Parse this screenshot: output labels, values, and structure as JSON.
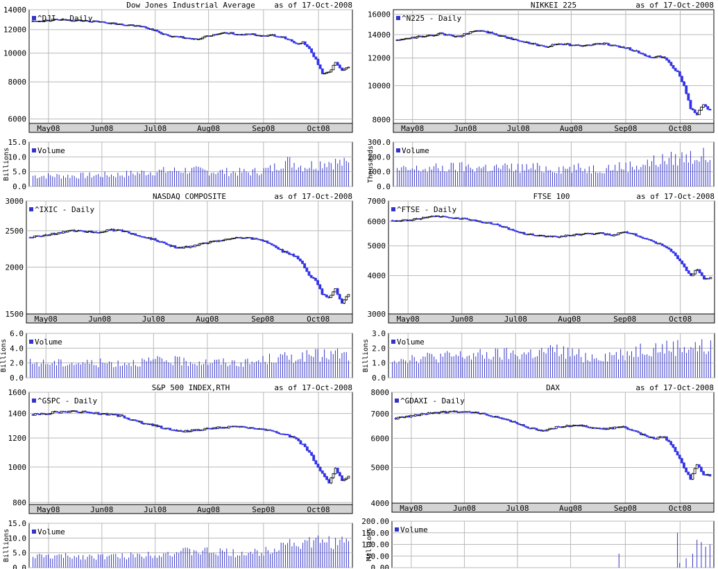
{
  "colors": {
    "down_candle": "#3333ee",
    "up_candle": "#ffffff",
    "candle_outline": "#000000",
    "volume_bar": "#3333cc",
    "grid": "#b8b8b8",
    "date_band": "#d4d4d4",
    "legend_box": "#3333cc"
  },
  "months": [
    "May08",
    "Jun08",
    "Jul08",
    "Aug08",
    "Sep08",
    "Oct08"
  ],
  "chart_data": [
    {
      "type": "candlestick",
      "title": "Dow Jones Industrial Average",
      "asof": "as of 17-Oct-2008",
      "legend": "^DJI - Daily",
      "vol_legend": "Volume",
      "vol_unit": "Billions",
      "y_scale": "log",
      "ylim": [
        5800,
        14000
      ],
      "yticks": [
        6000,
        8000,
        10000,
        12000,
        14000
      ],
      "ytick_labels": [
        "6000",
        "8000",
        "10000",
        "12000",
        "14000"
      ],
      "vol_ylim": [
        0,
        15
      ],
      "vol_ticks": [
        0,
        5,
        10,
        15
      ],
      "vol_tick_labels": [
        "0.0",
        "5.0",
        "10.0",
        "15.0"
      ],
      "close_path": [
        [
          0,
          12800
        ],
        [
          10,
          12950
        ],
        [
          20,
          12900
        ],
        [
          30,
          12750
        ],
        [
          40,
          12500
        ],
        [
          48,
          12400
        ],
        [
          55,
          12000
        ],
        [
          62,
          11400
        ],
        [
          68,
          11300
        ],
        [
          75,
          11100
        ],
        [
          80,
          11400
        ],
        [
          85,
          11600
        ],
        [
          90,
          11700
        ],
        [
          95,
          11500
        ],
        [
          100,
          11600
        ],
        [
          105,
          11400
        ],
        [
          110,
          11500
        ],
        [
          115,
          11300
        ],
        [
          118,
          11100
        ],
        [
          121,
          10700
        ],
        [
          124,
          10900
        ],
        [
          127,
          10300
        ],
        [
          130,
          9500
        ],
        [
          133,
          8500
        ],
        [
          136,
          8600
        ],
        [
          139,
          9300
        ],
        [
          142,
          8700
        ],
        [
          145,
          9000
        ]
      ],
      "volume_path": [
        [
          0,
          3.6
        ],
        [
          20,
          3.6
        ],
        [
          40,
          4.0
        ],
        [
          55,
          5.0
        ],
        [
          70,
          5.5
        ],
        [
          85,
          5.0
        ],
        [
          100,
          4.8
        ],
        [
          110,
          6.0
        ],
        [
          115,
          8.5
        ],
        [
          120,
          8.0
        ],
        [
          124,
          6.8
        ],
        [
          130,
          7.5
        ],
        [
          135,
          8.5
        ],
        [
          140,
          8.0
        ],
        [
          145,
          7.5
        ]
      ]
    },
    {
      "type": "candlestick",
      "title": "NIKKEI 225",
      "asof": "as of 17-Oct-2008",
      "legend": "^N225 - Daily",
      "vol_legend": "Volume",
      "vol_unit": "Thousands",
      "y_scale": "log",
      "ylim": [
        7800,
        16500
      ],
      "yticks": [
        8000,
        10000,
        12000,
        14000,
        16000
      ],
      "ytick_labels": [
        "8000",
        "10000",
        "12000",
        "14000",
        "16000"
      ],
      "vol_ylim": [
        0,
        300
      ],
      "vol_ticks": [
        0,
        100,
        200,
        300
      ],
      "vol_tick_labels": [
        "0.0",
        "100.0",
        "200.0",
        "300.0"
      ],
      "close_path": [
        [
          0,
          13500
        ],
        [
          10,
          13800
        ],
        [
          20,
          14100
        ],
        [
          28,
          13800
        ],
        [
          35,
          14300
        ],
        [
          40,
          14300
        ],
        [
          48,
          13900
        ],
        [
          55,
          13500
        ],
        [
          62,
          13200
        ],
        [
          68,
          12900
        ],
        [
          75,
          13200
        ],
        [
          85,
          13000
        ],
        [
          95,
          13200
        ],
        [
          105,
          12900
        ],
        [
          110,
          12600
        ],
        [
          113,
          12400
        ],
        [
          118,
          12000
        ],
        [
          121,
          12100
        ],
        [
          124,
          12000
        ],
        [
          127,
          11400
        ],
        [
          130,
          10900
        ],
        [
          133,
          10000
        ],
        [
          136,
          8600
        ],
        [
          139,
          8300
        ],
        [
          142,
          8800
        ],
        [
          145,
          8500
        ]
      ],
      "volume_path": [
        [
          0,
          110
        ],
        [
          30,
          130
        ],
        [
          60,
          125
        ],
        [
          90,
          120
        ],
        [
          110,
          140
        ],
        [
          120,
          170
        ],
        [
          130,
          190
        ],
        [
          140,
          210
        ],
        [
          145,
          190
        ]
      ]
    },
    {
      "type": "candlestick",
      "title": "NASDAQ COMPOSITE",
      "asof": "as of 17-Oct-2008",
      "legend": "^IXIC - Daily",
      "vol_legend": "Volume",
      "vol_unit": "Billions",
      "y_scale": "log",
      "ylim": [
        1500,
        3000
      ],
      "yticks": [
        1500,
        2000,
        2500,
        3000
      ],
      "ytick_labels": [
        "1500",
        "2000",
        "2500",
        "3000"
      ],
      "vol_ylim": [
        0,
        6
      ],
      "vol_ticks": [
        0,
        2,
        4,
        6
      ],
      "vol_tick_labels": [
        "0.0",
        "2.0",
        "4.0",
        "6.0"
      ],
      "close_path": [
        [
          0,
          2400
        ],
        [
          10,
          2450
        ],
        [
          20,
          2500
        ],
        [
          30,
          2480
        ],
        [
          40,
          2520
        ],
        [
          48,
          2430
        ],
        [
          55,
          2380
        ],
        [
          62,
          2300
        ],
        [
          68,
          2250
        ],
        [
          75,
          2280
        ],
        [
          85,
          2350
        ],
        [
          95,
          2400
        ],
        [
          105,
          2370
        ],
        [
          110,
          2300
        ],
        [
          115,
          2200
        ],
        [
          120,
          2150
        ],
        [
          124,
          2050
        ],
        [
          127,
          1900
        ],
        [
          130,
          1850
        ],
        [
          133,
          1700
        ],
        [
          136,
          1650
        ],
        [
          139,
          1750
        ],
        [
          142,
          1600
        ],
        [
          145,
          1700
        ]
      ],
      "volume_path": [
        [
          0,
          2.0
        ],
        [
          40,
          2.0
        ],
        [
          60,
          2.3
        ],
        [
          85,
          2.1
        ],
        [
          100,
          2.0
        ],
        [
          110,
          2.6
        ],
        [
          120,
          2.8
        ],
        [
          130,
          3.0
        ],
        [
          140,
          3.2
        ],
        [
          145,
          2.9
        ]
      ]
    },
    {
      "type": "candlestick",
      "title": "FTSE 100",
      "asof": "as of 17-Oct-2008",
      "legend": "^FTSE - Daily",
      "vol_legend": "Volume",
      "vol_unit": "Billions",
      "y_scale": "log",
      "ylim": [
        3000,
        7000
      ],
      "yticks": [
        3000,
        4000,
        5000,
        6000,
        7000
      ],
      "ytick_labels": [
        "3000",
        "4000",
        "5000",
        "6000",
        "7000"
      ],
      "vol_ylim": [
        0,
        3
      ],
      "vol_ticks": [
        0,
        1,
        2,
        3
      ],
      "vol_tick_labels": [
        "0.0",
        "1.0",
        "2.0",
        "3.0"
      ],
      "close_path": [
        [
          0,
          6050
        ],
        [
          10,
          6100
        ],
        [
          20,
          6250
        ],
        [
          30,
          6150
        ],
        [
          40,
          6000
        ],
        [
          48,
          5850
        ],
        [
          55,
          5600
        ],
        [
          62,
          5450
        ],
        [
          68,
          5400
        ],
        [
          75,
          5350
        ],
        [
          85,
          5450
        ],
        [
          95,
          5500
        ],
        [
          100,
          5400
        ],
        [
          105,
          5550
        ],
        [
          110,
          5450
        ],
        [
          115,
          5300
        ],
        [
          120,
          5100
        ],
        [
          124,
          5000
        ],
        [
          127,
          4800
        ],
        [
          130,
          4550
        ],
        [
          133,
          4250
        ],
        [
          136,
          4000
        ],
        [
          139,
          4200
        ],
        [
          142,
          3900
        ],
        [
          145,
          3950
        ]
      ],
      "volume_path": [
        [
          0,
          1.3
        ],
        [
          40,
          1.5
        ],
        [
          60,
          1.6
        ],
        [
          75,
          1.8
        ],
        [
          90,
          1.4
        ],
        [
          105,
          1.6
        ],
        [
          115,
          2.0
        ],
        [
          125,
          2.0
        ],
        [
          135,
          2.1
        ],
        [
          145,
          2.0
        ]
      ]
    },
    {
      "type": "candlestick",
      "title": "S&P 500 INDEX,RTH",
      "asof": "as of 17-Oct-2008",
      "legend": "^GSPC - Daily",
      "vol_legend": "Volume",
      "vol_unit": "Billions",
      "y_scale": "log",
      "ylim": [
        790,
        1600
      ],
      "yticks": [
        800,
        1000,
        1200,
        1400,
        1600
      ],
      "ytick_labels": [
        "800",
        "1000",
        "1200",
        "1400",
        "1600"
      ],
      "vol_ylim": [
        0,
        15
      ],
      "vol_ticks": [
        0,
        5,
        10,
        15
      ],
      "vol_tick_labels": [
        "0.0",
        "5.0",
        "10.0",
        "15.0"
      ],
      "close_path": [
        [
          0,
          1390
        ],
        [
          10,
          1410
        ],
        [
          20,
          1420
        ],
        [
          30,
          1400
        ],
        [
          40,
          1380
        ],
        [
          48,
          1330
        ],
        [
          55,
          1300
        ],
        [
          62,
          1270
        ],
        [
          68,
          1250
        ],
        [
          75,
          1260
        ],
        [
          85,
          1280
        ],
        [
          95,
          1290
        ],
        [
          105,
          1270
        ],
        [
          110,
          1250
        ],
        [
          115,
          1230
        ],
        [
          120,
          1200
        ],
        [
          124,
          1150
        ],
        [
          127,
          1100
        ],
        [
          130,
          1020
        ],
        [
          133,
          960
        ],
        [
          136,
          900
        ],
        [
          139,
          990
        ],
        [
          142,
          920
        ],
        [
          145,
          940
        ]
      ],
      "volume_path": [
        [
          0,
          3.8
        ],
        [
          40,
          3.8
        ],
        [
          60,
          4.8
        ],
        [
          75,
          5.5
        ],
        [
          90,
          5.0
        ],
        [
          105,
          5.0
        ],
        [
          110,
          6.5
        ],
        [
          115,
          8.5
        ],
        [
          125,
          8.0
        ],
        [
          135,
          9.0
        ],
        [
          145,
          8.0
        ]
      ]
    },
    {
      "type": "candlestick",
      "title": "DAX",
      "asof": "as of 17-Oct-2008",
      "legend": "^GDAXI - Daily",
      "vol_legend": "Volume",
      "vol_unit": "Millions",
      "y_scale": "log",
      "ylim": [
        4000,
        8000
      ],
      "yticks": [
        4000,
        5000,
        6000,
        7000,
        8000
      ],
      "ytick_labels": [
        "4000",
        "5000",
        "6000",
        "7000",
        "8000"
      ],
      "vol_ylim": [
        0,
        200
      ],
      "vol_ticks": [
        0,
        50,
        100,
        150,
        200
      ],
      "vol_tick_labels": [
        "0.00",
        "50.00",
        "100.00",
        "150.00",
        "200.00"
      ],
      "close_path": [
        [
          0,
          6800
        ],
        [
          10,
          6950
        ],
        [
          20,
          7050
        ],
        [
          30,
          7100
        ],
        [
          40,
          7000
        ],
        [
          48,
          6800
        ],
        [
          55,
          6600
        ],
        [
          62,
          6400
        ],
        [
          68,
          6300
        ],
        [
          75,
          6450
        ],
        [
          85,
          6500
        ],
        [
          95,
          6350
        ],
        [
          105,
          6450
        ],
        [
          110,
          6300
        ],
        [
          115,
          6100
        ],
        [
          120,
          6000
        ],
        [
          124,
          6050
        ],
        [
          127,
          5800
        ],
        [
          130,
          5400
        ],
        [
          133,
          5000
        ],
        [
          136,
          4650
        ],
        [
          139,
          5100
        ],
        [
          142,
          4800
        ],
        [
          145,
          4750
        ]
      ],
      "volume_spikes": [
        [
          103,
          60
        ],
        [
          130,
          150
        ],
        [
          131,
          20
        ],
        [
          134,
          40
        ],
        [
          137,
          60
        ],
        [
          139,
          120
        ],
        [
          141,
          110
        ],
        [
          143,
          90
        ],
        [
          145,
          100
        ]
      ]
    }
  ]
}
